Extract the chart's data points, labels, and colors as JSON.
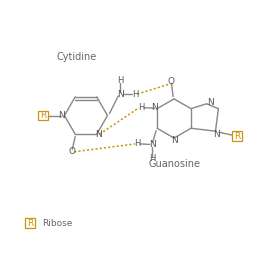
{
  "bg_color": "#ffffff",
  "bond_color": "#888888",
  "hbond_color": "#c8960c",
  "atom_color": "#555555",
  "r_color": "#c8960c",
  "title_color": "#666666",
  "cytidine_label": "Cytidine",
  "guanosine_label": "Guanosine",
  "ribose_legend": "Ribose",
  "figsize": [
    2.6,
    2.8
  ],
  "dpi": 100
}
